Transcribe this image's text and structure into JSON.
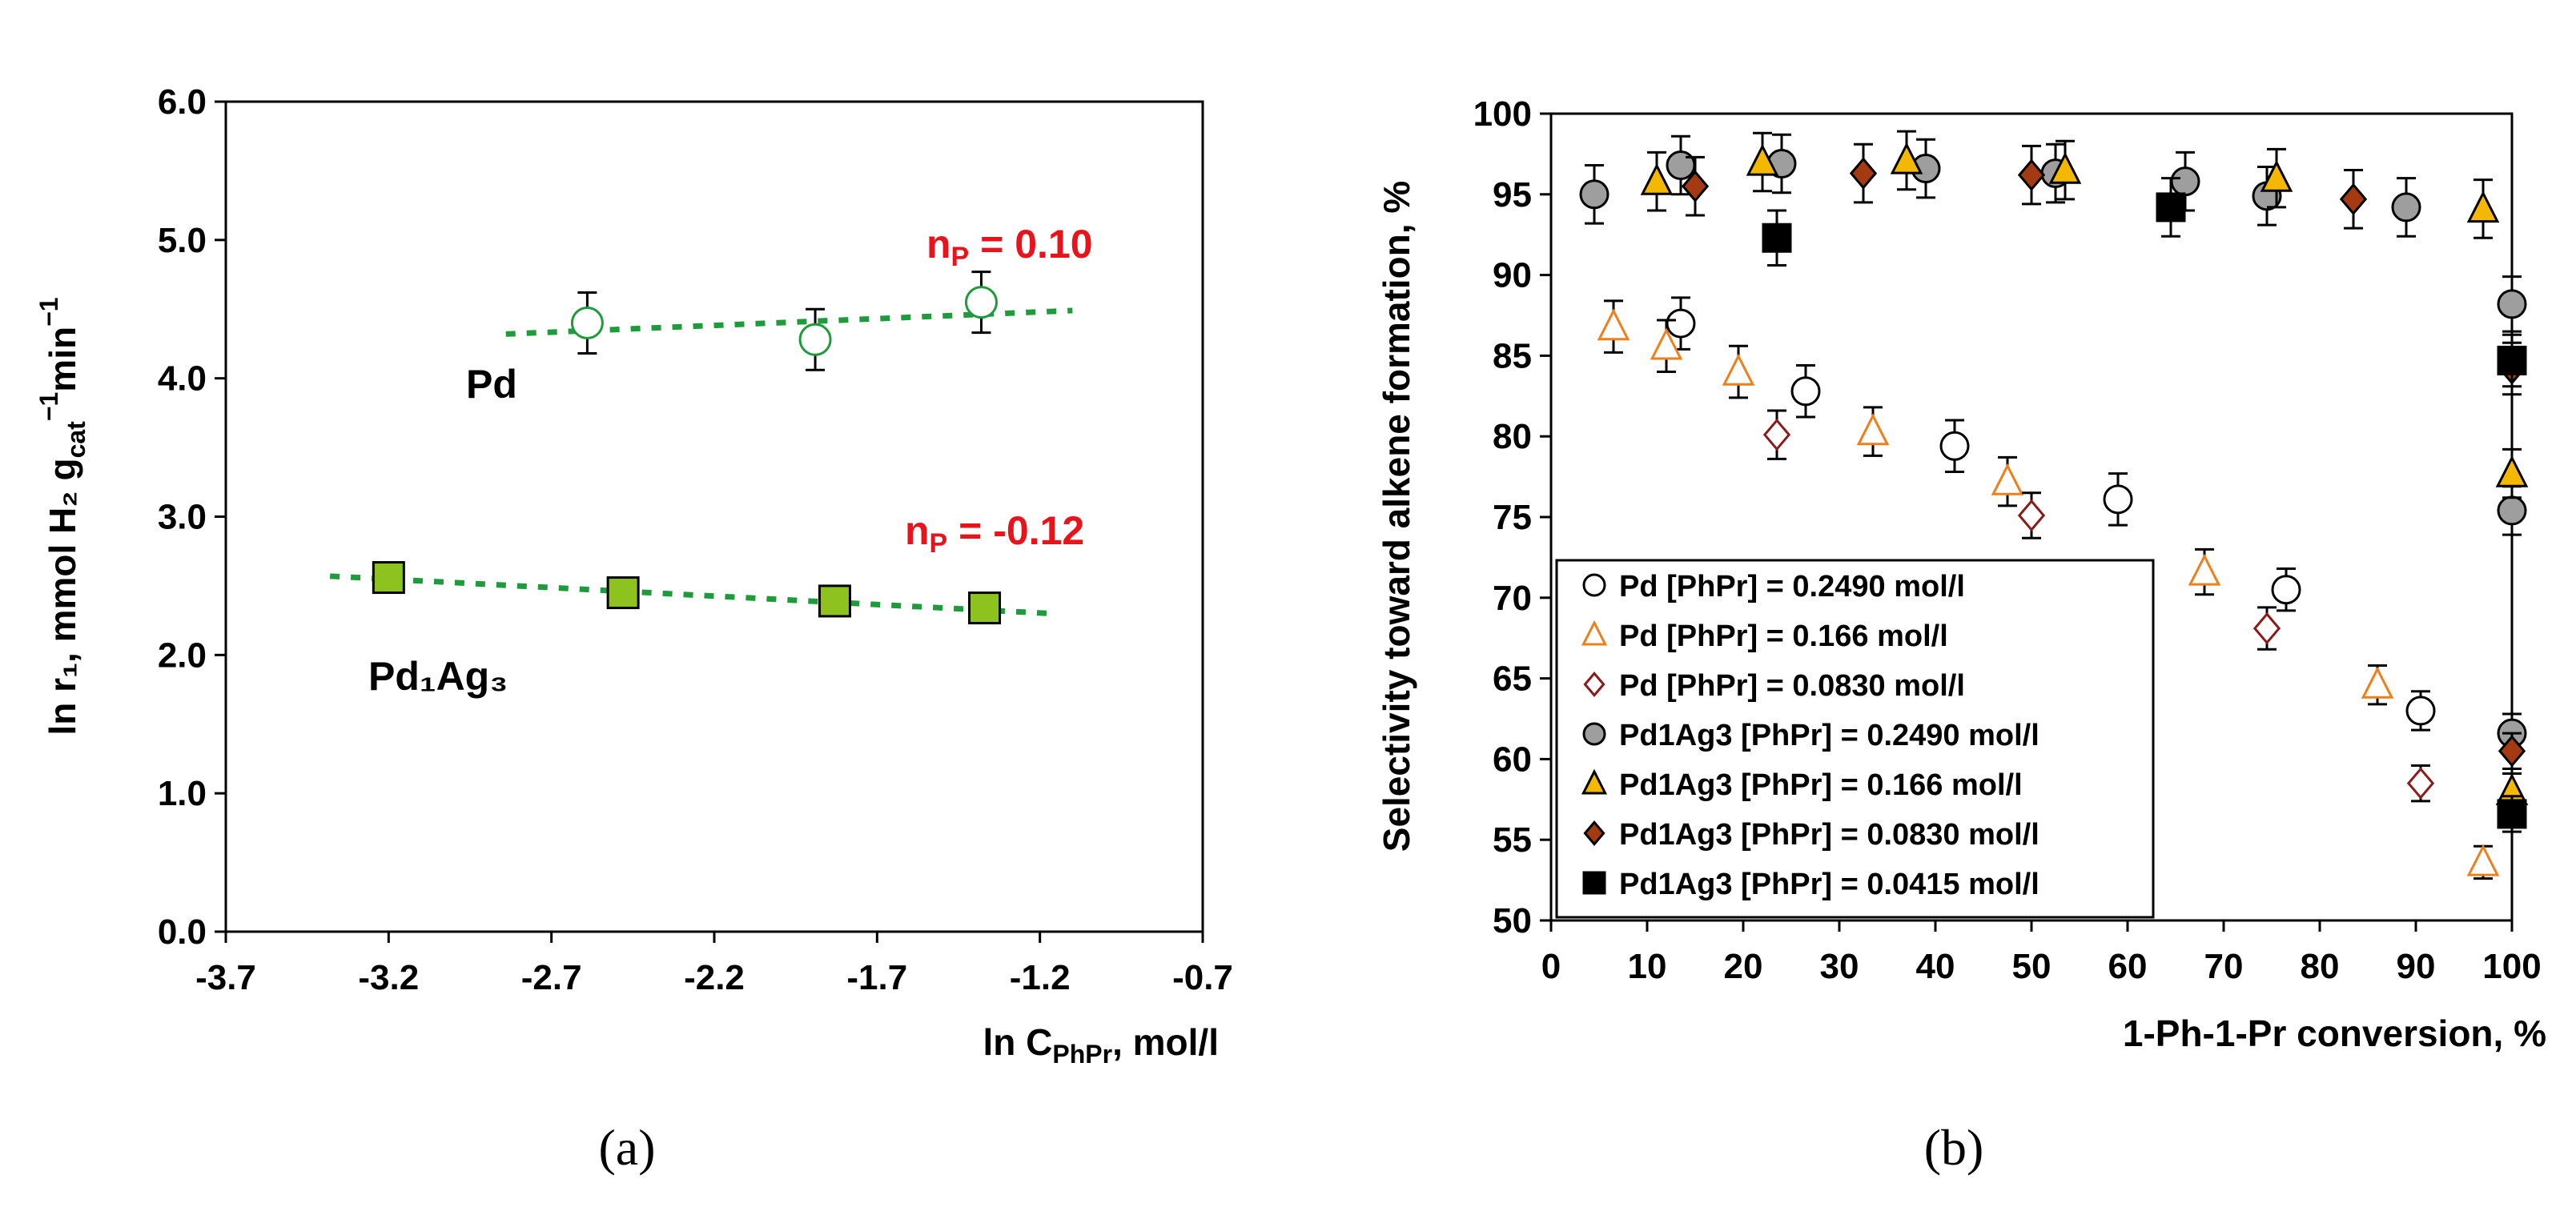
{
  "chart_data": [
    {
      "panel": "(a)",
      "type": "scatter",
      "xlabel": "ln C",
      "xlabel_sub": "PhPr",
      "xlabel_unit": ", mol/l",
      "ylabel": "ln r₁, mmol H₂ g",
      "ylabel_sub": "cat",
      "ylabel_sup": "−1",
      "ylabel_tail": "min",
      "ylabel_sup2": "−1",
      "xlim": [
        -3.7,
        -0.7
      ],
      "ylim": [
        0.0,
        6.0
      ],
      "xticks": [
        "-3.7",
        "-3.2",
        "-2.7",
        "-2.2",
        "-1.7",
        "-1.2",
        "-0.7"
      ],
      "yticks": [
        "0.0",
        "1.0",
        "2.0",
        "3.0",
        "4.0",
        "5.0",
        "6.0"
      ],
      "series": [
        {
          "name": "Pd",
          "label": "Pd",
          "marker": "circle-open",
          "color": "#1f9a3c",
          "x": [
            -2.59,
            -1.89,
            -1.38
          ],
          "y": [
            4.4,
            4.28,
            4.55
          ],
          "yerr": [
            0.22,
            0.22,
            0.22
          ],
          "fit": {
            "x": [
              -2.84,
              -1.1
            ],
            "y": [
              4.32,
              4.49
            ]
          },
          "annotation": "nP = 0.10",
          "ann_main": "n",
          "ann_sub": "P",
          "ann_value": " = 0.10"
        },
        {
          "name": "Pd1Ag3",
          "label": "Pd₁Ag₃",
          "marker": "square-filled",
          "color": "#8dc21f",
          "x": [
            -3.2,
            -2.48,
            -1.83,
            -1.37
          ],
          "y": [
            2.56,
            2.45,
            2.39,
            2.34
          ],
          "yerr": [
            0.1,
            0.1,
            0.1,
            0.1
          ],
          "fit": {
            "x": [
              -3.38,
              -1.17
            ],
            "y": [
              2.57,
              2.3
            ]
          },
          "annotation": "nP = -0.12",
          "ann_main": "n",
          "ann_sub": "P",
          "ann_value": " = -0.12"
        }
      ]
    },
    {
      "panel": "(b)",
      "type": "scatter",
      "xlabel": "1-Ph-1-Pr conversion, %",
      "ylabel": "Selectivity toward alkene formation, %",
      "xlim": [
        0,
        100
      ],
      "ylim": [
        50,
        100
      ],
      "xticks": [
        "0",
        "10",
        "20",
        "30",
        "40",
        "50",
        "60",
        "70",
        "80",
        "90",
        "100"
      ],
      "yticks": [
        "50",
        "55",
        "60",
        "65",
        "70",
        "75",
        "80",
        "85",
        "90",
        "95",
        "100"
      ],
      "series": [
        {
          "name": "Pd [PhPr] = 0.2490 mol/l",
          "marker": "circle-open",
          "color": "#ffffff",
          "stroke": "#000000",
          "x": [
            13.5,
            26.5,
            42,
            59,
            76.5,
            90.5
          ],
          "y": [
            87,
            82.8,
            79.4,
            76.1,
            70.5,
            63
          ],
          "yerr": [
            1.6,
            1.6,
            1.6,
            1.6,
            1.3,
            1.2
          ]
        },
        {
          "name": "Pd [PhPr] = 0.166 mol/l",
          "marker": "triangle-open",
          "color": "#ffffff",
          "stroke": "#ef7f1a",
          "x": [
            6.5,
            12,
            19.5,
            33.5,
            47.5,
            68,
            86,
            97
          ],
          "y": [
            86.8,
            85.6,
            84,
            80.3,
            77.2,
            71.6,
            64.6,
            53.6
          ],
          "yerr": [
            1.6,
            1.6,
            1.6,
            1.5,
            1.5,
            1.4,
            1.2,
            1.0
          ]
        },
        {
          "name": "Pd [PhPr] = 0.0830 mol/l",
          "marker": "diamond-open",
          "color": "#ffffff",
          "stroke": "#8b1a1a",
          "x": [
            23.5,
            50,
            74.5,
            90.5
          ],
          "y": [
            80.1,
            75.1,
            68.1,
            58.5
          ],
          "yerr": [
            1.5,
            1.4,
            1.3,
            1.1
          ]
        },
        {
          "name": "Pd1Ag3 [PhPr] = 0.2490 mol/l",
          "marker": "circle-filled",
          "color": "#9e9e9e",
          "stroke": "#000000",
          "x": [
            4.5,
            13.5,
            24,
            39,
            52.5,
            66,
            74.5,
            89,
            100,
            100,
            100
          ],
          "y": [
            95,
            96.8,
            96.9,
            96.6,
            96.3,
            95.8,
            94.9,
            94.2,
            88.2,
            75.4,
            61.6
          ],
          "yerr": [
            1.8,
            1.8,
            1.8,
            1.8,
            1.8,
            1.8,
            1.8,
            1.8,
            1.7,
            1.5,
            1.2
          ]
        },
        {
          "name": "Pd1Ag3 [PhPr] = 0.166 mol/l",
          "marker": "triangle-filled",
          "color": "#f5b800",
          "stroke": "#000000",
          "x": [
            11,
            22,
            37,
            53.5,
            75.5,
            97,
            100,
            100
          ],
          "y": [
            95.8,
            97,
            97.1,
            96.5,
            96,
            94.1,
            77.7,
            58
          ],
          "yerr": [
            1.8,
            1.8,
            1.8,
            1.8,
            1.8,
            1.8,
            1.5,
            1.1
          ]
        },
        {
          "name": "Pd1Ag3 [PhPr] = 0.0830 mol/l",
          "marker": "diamond-filled",
          "color": "#a33a12",
          "stroke": "#000000",
          "x": [
            15,
            32.5,
            50,
            83.5,
            100,
            100
          ],
          "y": [
            95.5,
            96.3,
            96.2,
            94.7,
            84.2,
            60.5
          ],
          "yerr": [
            1.8,
            1.8,
            1.8,
            1.8,
            1.6,
            1.1
          ]
        },
        {
          "name": "Pd1Ag3 [PhPr] = 0.0415 mol/l",
          "marker": "square-filled",
          "color": "#000000",
          "stroke": "#000000",
          "x": [
            23.5,
            64.5,
            100,
            100
          ],
          "y": [
            92.3,
            94.2,
            84.7,
            56.6
          ],
          "yerr": [
            1.7,
            1.8,
            1.6,
            1.1
          ]
        }
      ],
      "legend": "lower-left"
    }
  ],
  "panel_labels": {
    "a": "(a)",
    "b": "(b)"
  }
}
